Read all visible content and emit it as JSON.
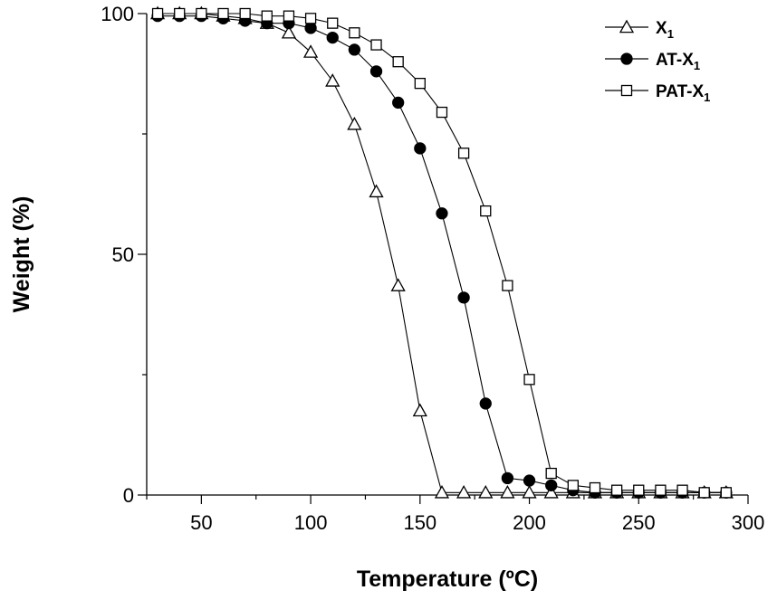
{
  "chart_data": {
    "type": "line",
    "xlabel": "Temperature (ºC)",
    "ylabel": "Weight (%)",
    "xlim": [
      25,
      300
    ],
    "ylim": [
      0,
      100
    ],
    "xticks": [
      50,
      100,
      150,
      200,
      250,
      300
    ],
    "yticks": [
      0,
      50,
      100
    ],
    "grid": false,
    "legend_position": "top-right",
    "series": [
      {
        "name": "X",
        "name_subscript": "1",
        "marker": "triangle-open",
        "x": [
          30,
          40,
          50,
          60,
          70,
          80,
          90,
          100,
          110,
          120,
          130,
          140,
          150,
          160,
          170,
          180,
          190,
          200,
          210,
          220,
          230,
          240,
          250,
          260,
          270,
          280,
          290
        ],
        "y": [
          100,
          100,
          100,
          99.5,
          99,
          98,
          96,
          92,
          86,
          77,
          63,
          43.5,
          17.5,
          0.5,
          0.5,
          0.5,
          0.5,
          0.5,
          0.5,
          0.5,
          0.5,
          0.5,
          0.5,
          0.5,
          0.5,
          0.5,
          0.5
        ]
      },
      {
        "name": "AT-X",
        "name_subscript": "1",
        "marker": "circle-filled",
        "x": [
          30,
          40,
          50,
          60,
          70,
          80,
          90,
          100,
          110,
          120,
          130,
          140,
          150,
          160,
          170,
          180,
          190,
          200,
          210,
          220,
          230,
          240,
          250,
          260,
          270,
          280,
          290
        ],
        "y": [
          99.5,
          99.5,
          99.5,
          99,
          98.5,
          98,
          98,
          97,
          95,
          92.5,
          88,
          81.5,
          72,
          58.5,
          41,
          19,
          3.5,
          3,
          2,
          1,
          0.5,
          0.5,
          0.5,
          0.5,
          0.5,
          0.5,
          0.5
        ]
      },
      {
        "name": "PAT-X",
        "name_subscript": "1",
        "marker": "square-open",
        "x": [
          30,
          40,
          50,
          60,
          70,
          80,
          90,
          100,
          110,
          120,
          130,
          140,
          150,
          160,
          170,
          180,
          190,
          200,
          210,
          220,
          230,
          240,
          250,
          260,
          270,
          280,
          290
        ],
        "y": [
          100,
          100,
          100,
          100,
          100,
          99.5,
          99.5,
          99,
          98,
          96,
          93.5,
          90,
          85.5,
          79.5,
          71,
          59,
          43.5,
          24,
          4.5,
          2,
          1.5,
          1,
          1,
          1,
          1,
          0.5,
          0.5
        ]
      }
    ]
  }
}
